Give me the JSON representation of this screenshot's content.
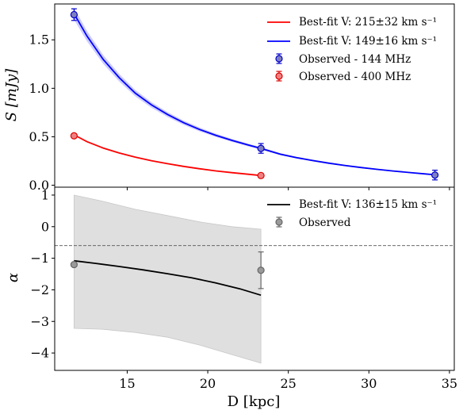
{
  "chart_data": [
    {
      "type": "line",
      "panel": "top",
      "ylabel": "S [mJy]",
      "xlim": [
        10.5,
        35.3
      ],
      "ylim": [
        -0.02,
        1.87
      ],
      "yticks": [
        0.0,
        0.5,
        1.0,
        1.5
      ],
      "ytick_labels": [
        "0.0",
        "0.5",
        "1.0",
        "1.5"
      ],
      "legend_position": "top-right",
      "series": [
        {
          "name": "Best-fit V: 215±32 km s⁻¹",
          "kind": "fit-line",
          "color": "#ff0000",
          "x": [
            11.7,
            12.5,
            13.5,
            14.5,
            15.5,
            16.5,
            17.5,
            18.5,
            19.5,
            20.5,
            21.5,
            22.5,
            23.3
          ],
          "y": [
            0.52,
            0.45,
            0.384,
            0.333,
            0.29,
            0.253,
            0.222,
            0.194,
            0.17,
            0.148,
            0.13,
            0.113,
            0.1
          ]
        },
        {
          "name": "Best-fit V: 149±16 km s⁻¹",
          "kind": "fit-line-with-band",
          "color": "#0000ff",
          "x": [
            11.7,
            12.5,
            13.5,
            14.5,
            15.5,
            16.5,
            17.5,
            18.5,
            19.5,
            20.5,
            21.5,
            22.5,
            23.3,
            24.5,
            25.5,
            26.5,
            27.5,
            28.5,
            29.5,
            30.5,
            31.5,
            32.5,
            33.5,
            34.1
          ],
          "y": [
            1.77,
            1.54,
            1.3,
            1.11,
            0.95,
            0.83,
            0.73,
            0.645,
            0.575,
            0.515,
            0.463,
            0.415,
            0.38,
            0.32,
            0.285,
            0.255,
            0.228,
            0.204,
            0.183,
            0.164,
            0.147,
            0.131,
            0.117,
            0.108
          ]
        },
        {
          "name": "Observed - 144 MHz",
          "kind": "errorbar",
          "color": "#0000cc",
          "x": [
            11.7,
            23.3,
            34.1
          ],
          "y": [
            1.76,
            0.38,
            0.105
          ],
          "yerr": [
            0.06,
            0.05,
            0.05
          ]
        },
        {
          "name": "Observed - 400 MHz",
          "kind": "errorbar",
          "color": "#dd0000",
          "x": [
            11.7,
            23.3
          ],
          "y": [
            0.51,
            0.1
          ],
          "yerr": [
            0.02,
            0.01
          ]
        }
      ]
    },
    {
      "type": "line",
      "panel": "bottom",
      "xlabel": "D [kpc]",
      "ylabel": "α",
      "xlim": [
        10.5,
        35.3
      ],
      "ylim": [
        -4.55,
        1.25
      ],
      "xticks": [
        15,
        20,
        25,
        30,
        35
      ],
      "xtick_labels": [
        "15",
        "20",
        "25",
        "30",
        "35"
      ],
      "yticks": [
        1,
        0,
        -1,
        -2,
        -3,
        -4
      ],
      "ytick_labels": [
        "1",
        "0",
        "−1",
        "−2",
        "−3",
        "−4"
      ],
      "reference_line_y": -0.6,
      "legend_position": "top-right",
      "series": [
        {
          "name": "Best-fit V: 136±15 km s⁻¹",
          "kind": "fit-line",
          "color": "#000000",
          "x": [
            11.7,
            13.0,
            14.5,
            16.0,
            17.5,
            19.0,
            20.5,
            22.0,
            23.3
          ],
          "y": [
            -1.08,
            -1.16,
            -1.26,
            -1.37,
            -1.49,
            -1.62,
            -1.78,
            -1.97,
            -2.17
          ]
        },
        {
          "name": "uncertainty band",
          "kind": "band",
          "color": "#d9d9d9",
          "x": [
            11.7,
            13.5,
            15.5,
            17.5,
            19.5,
            21.5,
            23.3
          ],
          "upper": [
            1.0,
            0.8,
            0.55,
            0.35,
            0.15,
            0.0,
            -0.08
          ],
          "lower": [
            -3.22,
            -3.25,
            -3.35,
            -3.5,
            -3.75,
            -4.05,
            -4.32
          ]
        },
        {
          "name": "Observed",
          "kind": "errorbar",
          "color": "#808080",
          "x": [
            11.7,
            23.3
          ],
          "y": [
            -1.2,
            -1.38
          ],
          "yerr": [
            0.05,
            0.58
          ]
        }
      ]
    }
  ],
  "axis_labels": {
    "top_ylabel": "S [mJy]",
    "bottom_ylabel": "α",
    "xlabel": "D [kpc]"
  },
  "legend_top": {
    "red_line": "Best-fit V: 215±32 km s⁻¹",
    "blue_line": "Best-fit V: 149±16 km s⁻¹",
    "obs_144": "Observed - 144 MHz",
    "obs_400": "Observed - 400 MHz"
  },
  "legend_bottom": {
    "black_line": "Best-fit V: 136±15 km s⁻¹",
    "observed": "Observed"
  }
}
